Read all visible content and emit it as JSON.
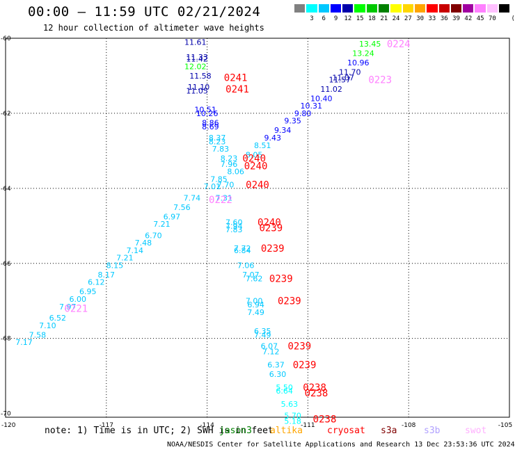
{
  "header": {
    "title": "00:00 – 11:59 UTC 02/21/2024",
    "subtitle": "12 hour collection of altimeter wave heights"
  },
  "legend": {
    "unit": "(ft)",
    "bins": [
      {
        "label": "",
        "color": "#808080"
      },
      {
        "label": "3",
        "color": "#00ffff"
      },
      {
        "label": "6",
        "color": "#00c8ff"
      },
      {
        "label": "9",
        "color": "#0000ff"
      },
      {
        "label": "12",
        "color": "#0000aa"
      },
      {
        "label": "15",
        "color": "#00ff00"
      },
      {
        "label": "18",
        "color": "#00c800"
      },
      {
        "label": "21",
        "color": "#008000"
      },
      {
        "label": "24",
        "color": "#ffff00"
      },
      {
        "label": "27",
        "color": "#ffd700"
      },
      {
        "label": "30",
        "color": "#ffa500"
      },
      {
        "label": "33",
        "color": "#ff0000"
      },
      {
        "label": "36",
        "color": "#c80000"
      },
      {
        "label": "39",
        "color": "#800000"
      },
      {
        "label": "42",
        "color": "#a000a0"
      },
      {
        "label": "45",
        "color": "#ff80ff"
      },
      {
        "label": "70",
        "color": "#ffc0ff"
      },
      {
        "label": "",
        "color": "#000000"
      }
    ]
  },
  "map": {
    "lat_labels": [
      "-60",
      "-62",
      "-64",
      "-66",
      "-68",
      "-70"
    ],
    "lon_labels": [
      "-120",
      "-117",
      "-114",
      "-111",
      "-108",
      "-105"
    ],
    "heights": [
      {
        "v": "11.61",
        "lon": -114.35,
        "lat": -60.1,
        "c": "#0000aa"
      },
      {
        "v": "11.33",
        "lon": -114.3,
        "lat": -60.5,
        "c": "#0000aa"
      },
      {
        "v": "11.42",
        "lon": -114.3,
        "lat": -60.55,
        "c": "#0000aa"
      },
      {
        "v": "12.02",
        "lon": -114.35,
        "lat": -60.75,
        "c": "#00ff00"
      },
      {
        "v": "11.58",
        "lon": -114.2,
        "lat": -61.0,
        "c": "#0000aa"
      },
      {
        "v": "11.10",
        "lon": -114.25,
        "lat": -61.3,
        "c": "#0000aa"
      },
      {
        "v": "11.05",
        "lon": -114.3,
        "lat": -61.4,
        "c": "#0000aa"
      },
      {
        "v": "10.51",
        "lon": -114.05,
        "lat": -61.9,
        "c": "#0000ff"
      },
      {
        "v": "10.26",
        "lon": -114.0,
        "lat": -62.0,
        "c": "#0000ff"
      },
      {
        "v": "8.86",
        "lon": -113.9,
        "lat": -62.25,
        "c": "#0000ff"
      },
      {
        "v": "8.69",
        "lon": -113.9,
        "lat": -62.35,
        "c": "#0000ff"
      },
      {
        "v": "8.37",
        "lon": -113.7,
        "lat": -62.65,
        "c": "#00c8ff"
      },
      {
        "v": "8.23",
        "lon": -113.7,
        "lat": -62.75,
        "c": "#00c8ff"
      },
      {
        "v": "7.83",
        "lon": -113.6,
        "lat": -62.95,
        "c": "#00c8ff"
      },
      {
        "v": "8.23",
        "lon": -113.35,
        "lat": -63.2,
        "c": "#00c8ff"
      },
      {
        "v": "7.96",
        "lon": -113.35,
        "lat": -63.35,
        "c": "#00c8ff"
      },
      {
        "v": "8.06",
        "lon": -113.15,
        "lat": -63.55,
        "c": "#00c8ff"
      },
      {
        "v": "7.85",
        "lon": -113.65,
        "lat": -63.75,
        "c": "#00c8ff"
      },
      {
        "v": "7.70",
        "lon": -113.45,
        "lat": -63.9,
        "c": "#00c8ff"
      },
      {
        "v": "7.01",
        "lon": -113.85,
        "lat": -63.95,
        "c": "#00c8ff"
      },
      {
        "v": "7.74",
        "lon": -114.45,
        "lat": -64.25,
        "c": "#00c8ff"
      },
      {
        "v": "7.31",
        "lon": -113.5,
        "lat": -64.25,
        "c": "#00c8ff"
      },
      {
        "v": "7.56",
        "lon": -114.75,
        "lat": -64.5,
        "c": "#00c8ff"
      },
      {
        "v": "6.97",
        "lon": -115.05,
        "lat": -64.75,
        "c": "#00c8ff"
      },
      {
        "v": "7.21",
        "lon": -115.35,
        "lat": -64.95,
        "c": "#00c8ff"
      },
      {
        "v": "6.70",
        "lon": -115.6,
        "lat": -65.25,
        "c": "#00c8ff"
      },
      {
        "v": "7.48",
        "lon": -115.9,
        "lat": -65.45,
        "c": "#00c8ff"
      },
      {
        "v": "7.14",
        "lon": -116.15,
        "lat": -65.65,
        "c": "#00c8ff"
      },
      {
        "v": "7.21",
        "lon": -116.45,
        "lat": -65.85,
        "c": "#00c8ff"
      },
      {
        "v": "8.15",
        "lon": -116.75,
        "lat": -66.05,
        "c": "#00c8ff"
      },
      {
        "v": "8.17",
        "lon": -117.0,
        "lat": -66.3,
        "c": "#00c8ff"
      },
      {
        "v": "6.12",
        "lon": -117.3,
        "lat": -66.5,
        "c": "#00c8ff"
      },
      {
        "v": "6.95",
        "lon": -117.55,
        "lat": -66.75,
        "c": "#00c8ff"
      },
      {
        "v": "6.00",
        "lon": -117.85,
        "lat": -66.95,
        "c": "#00c8ff"
      },
      {
        "v": "7.97",
        "lon": -118.15,
        "lat": -67.15,
        "c": "#00c8ff"
      },
      {
        "v": "6.52",
        "lon": -118.45,
        "lat": -67.45,
        "c": "#00c8ff"
      },
      {
        "v": "7.10",
        "lon": -118.75,
        "lat": -67.65,
        "c": "#00c8ff"
      },
      {
        "v": "7.58",
        "lon": -119.05,
        "lat": -67.9,
        "c": "#00c8ff"
      },
      {
        "v": "7.17",
        "lon": -119.45,
        "lat": -68.1,
        "c": "#00c8ff"
      },
      {
        "v": "7.60",
        "lon": -113.2,
        "lat": -64.9,
        "c": "#00c8ff"
      },
      {
        "v": "7.94",
        "lon": -113.2,
        "lat": -65.0,
        "c": "#00c8ff"
      },
      {
        "v": "7.83",
        "lon": -113.2,
        "lat": -65.1,
        "c": "#00c8ff"
      },
      {
        "v": "7.72",
        "lon": -112.95,
        "lat": -65.6,
        "c": "#00c8ff"
      },
      {
        "v": "6.84",
        "lon": -112.95,
        "lat": -65.65,
        "c": "#00c8ff"
      },
      {
        "v": "7.06",
        "lon": -112.85,
        "lat": -66.05,
        "c": "#00c8ff"
      },
      {
        "v": "7.07",
        "lon": -112.7,
        "lat": -66.3,
        "c": "#00c8ff"
      },
      {
        "v": "7.62",
        "lon": -112.6,
        "lat": -66.4,
        "c": "#00c8ff"
      },
      {
        "v": "7.00",
        "lon": -112.6,
        "lat": -67.0,
        "c": "#00c8ff"
      },
      {
        "v": "6.94",
        "lon": -112.55,
        "lat": -67.1,
        "c": "#00c8ff"
      },
      {
        "v": "7.49",
        "lon": -112.55,
        "lat": -67.3,
        "c": "#00c8ff"
      },
      {
        "v": "6.35",
        "lon": -112.35,
        "lat": -67.8,
        "c": "#00c8ff"
      },
      {
        "v": "7.49",
        "lon": -112.35,
        "lat": -67.9,
        "c": "#00c8ff"
      },
      {
        "v": "6.07",
        "lon": -112.15,
        "lat": -68.2,
        "c": "#00c8ff"
      },
      {
        "v": "7.12",
        "lon": -112.1,
        "lat": -68.35,
        "c": "#00c8ff"
      },
      {
        "v": "6.37",
        "lon": -111.95,
        "lat": -68.7,
        "c": "#00c8ff"
      },
      {
        "v": "6.30",
        "lon": -111.9,
        "lat": -68.95,
        "c": "#00c8ff"
      },
      {
        "v": "5.50",
        "lon": -111.7,
        "lat": -69.3,
        "c": "#00ffff"
      },
      {
        "v": "6.64",
        "lon": -111.7,
        "lat": -69.4,
        "c": "#00ffff"
      },
      {
        "v": "5.63",
        "lon": -111.55,
        "lat": -69.75,
        "c": "#00ffff"
      },
      {
        "v": "5.70",
        "lon": -111.45,
        "lat": -70.05,
        "c": "#00ffff"
      },
      {
        "v": "5.18",
        "lon": -111.45,
        "lat": -70.2,
        "c": "#00ffff"
      },
      {
        "v": "13.45",
        "lon": -109.15,
        "lat": -60.15,
        "c": "#00ff00"
      },
      {
        "v": "13.24",
        "lon": -109.35,
        "lat": -60.4,
        "c": "#00ff00"
      },
      {
        "v": "10.96",
        "lon": -109.5,
        "lat": -60.65,
        "c": "#0000ff"
      },
      {
        "v": "11.70",
        "lon": -109.75,
        "lat": -60.9,
        "c": "#0000aa"
      },
      {
        "v": "11.57",
        "lon": -110.05,
        "lat": -61.1,
        "c": "#0000aa"
      },
      {
        "v": "11.07",
        "lon": -109.95,
        "lat": -61.05,
        "c": "#0000aa"
      },
      {
        "v": "11.02",
        "lon": -110.3,
        "lat": -61.35,
        "c": "#0000aa"
      },
      {
        "v": "10.40",
        "lon": -110.6,
        "lat": -61.6,
        "c": "#0000ff"
      },
      {
        "v": "10.31",
        "lon": -110.9,
        "lat": -61.8,
        "c": "#0000ff"
      },
      {
        "v": "9.80",
        "lon": -111.15,
        "lat": -62.0,
        "c": "#0000ff"
      },
      {
        "v": "9.35",
        "lon": -111.45,
        "lat": -62.2,
        "c": "#0000ff"
      },
      {
        "v": "9.34",
        "lon": -111.75,
        "lat": -62.45,
        "c": "#0000ff"
      },
      {
        "v": "9.43",
        "lon": -112.05,
        "lat": -62.65,
        "c": "#0000ff"
      },
      {
        "v": "8.51",
        "lon": -112.35,
        "lat": -62.85,
        "c": "#00c8ff"
      },
      {
        "v": "8.05",
        "lon": -112.6,
        "lat": -63.1,
        "c": "#00c8ff"
      }
    ],
    "times": [
      {
        "t": "0224",
        "lon": -108.3,
        "lat": -60.15,
        "c": "#ff80ff"
      },
      {
        "t": "0223",
        "lon": -108.85,
        "lat": -61.1,
        "c": "#ff80ff"
      },
      {
        "t": "0241",
        "lon": -113.15,
        "lat": -61.05,
        "c": "#ff0000"
      },
      {
        "t": "0241",
        "lon": -113.1,
        "lat": -61.35,
        "c": "#ff0000"
      },
      {
        "t": "0240",
        "lon": -112.6,
        "lat": -63.2,
        "c": "#ff0000"
      },
      {
        "t": "0240",
        "lon": -112.55,
        "lat": -63.4,
        "c": "#ff0000"
      },
      {
        "t": "0240",
        "lon": -112.5,
        "lat": -63.9,
        "c": "#ff0000"
      },
      {
        "t": "0222",
        "lon": -113.6,
        "lat": -64.3,
        "c": "#ff80ff"
      },
      {
        "t": "0240",
        "lon": -112.15,
        "lat": -64.9,
        "c": "#ff0000"
      },
      {
        "t": "0239",
        "lon": -112.1,
        "lat": -65.05,
        "c": "#ff0000"
      },
      {
        "t": "0239",
        "lon": -112.05,
        "lat": -65.6,
        "c": "#ff0000"
      },
      {
        "t": "0239",
        "lon": -111.8,
        "lat": -66.4,
        "c": "#ff0000"
      },
      {
        "t": "0239",
        "lon": -111.55,
        "lat": -67.0,
        "c": "#ff0000"
      },
      {
        "t": "0221",
        "lon": -117.9,
        "lat": -67.2,
        "c": "#ff80ff"
      },
      {
        "t": "0239",
        "lon": -111.25,
        "lat": -68.2,
        "c": "#ff0000"
      },
      {
        "t": "0239",
        "lon": -111.1,
        "lat": -68.7,
        "c": "#ff0000"
      },
      {
        "t": "0238",
        "lon": -110.8,
        "lat": -69.3,
        "c": "#ff0000"
      },
      {
        "t": "0238",
        "lon": -110.75,
        "lat": -69.45,
        "c": "#ff0000"
      },
      {
        "t": "0238",
        "lon": -110.5,
        "lat": -70.15,
        "c": "#ff0000"
      }
    ]
  },
  "footer": {
    "note": "note: 1) Time is in UTC; 2) SWH is in feet",
    "missions": [
      {
        "name": "jason3",
        "color": "#008000"
      },
      {
        "name": "altika",
        "color": "#ffa500"
      },
      {
        "name": "cryosat",
        "color": "#ff0000"
      },
      {
        "name": "s3a",
        "color": "#800000"
      },
      {
        "name": "s3b",
        "color": "#b0a0ff"
      },
      {
        "name": "swot",
        "color": "#ffb0ff"
      }
    ],
    "credit": "NOAA/NESDIS Center for Satellite Applications and Research    13 Dec 23:53:36 UTC 2024"
  }
}
